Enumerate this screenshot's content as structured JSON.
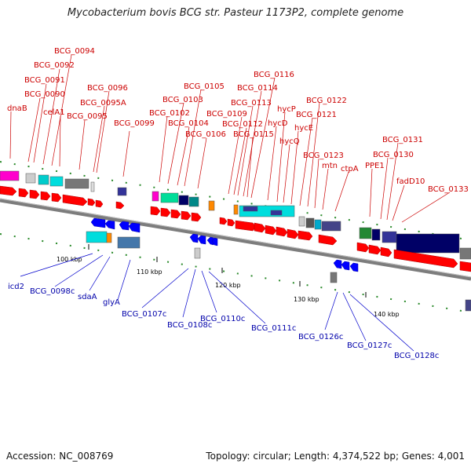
{
  "title": "Mycobacterium bovis BCG str. Pasteur 1173P2, complete genome",
  "accession": "Accession: NC_008769",
  "summary": "Topology: circular; Length: 4,374,522 bp; Genes: 4,001",
  "colors": {
    "forward_label": "#cc0000",
    "reverse_label": "#0000aa",
    "backbone": "#888888",
    "gene_arrow": "#ff0000",
    "reverse_arrow": "#0000ff"
  },
  "ticks": [
    "100 kbp",
    "110 kbp",
    "120 kbp",
    "130 kbp",
    "140 kbp"
  ],
  "forward_labels": [
    "dnaB",
    "BCG_0090",
    "BCG_0091",
    "BCG_0092",
    "BCG_0094",
    "celA1",
    "BCG_0095",
    "BCG_0095A",
    "BCG_0096",
    "BCG_0099",
    "BCG_0102",
    "BCG_0103",
    "BCG_0104",
    "BCG_0105",
    "BCG_0106",
    "BCG_0109",
    "BCG_0112",
    "BCG_0113",
    "BCG_0114",
    "BCG_0115",
    "BCG_0116",
    "hycD",
    "hycP",
    "hycQ",
    "hycE",
    "BCG_0121",
    "BCG_0122",
    "BCG_0123",
    "mtn",
    "ctpA",
    "PPE1",
    "BCG_0130",
    "BCG_0131",
    "fadD10",
    "BCG_0133"
  ],
  "reverse_labels": [
    "icd2",
    "BCG_0098c",
    "sdaA",
    "glyA",
    "BCG_0107c",
    "BCG_0108c",
    "BCG_0110c",
    "BCG_0111c",
    "BCG_0126c",
    "BCG_0127c",
    "BCG_0128c"
  ]
}
